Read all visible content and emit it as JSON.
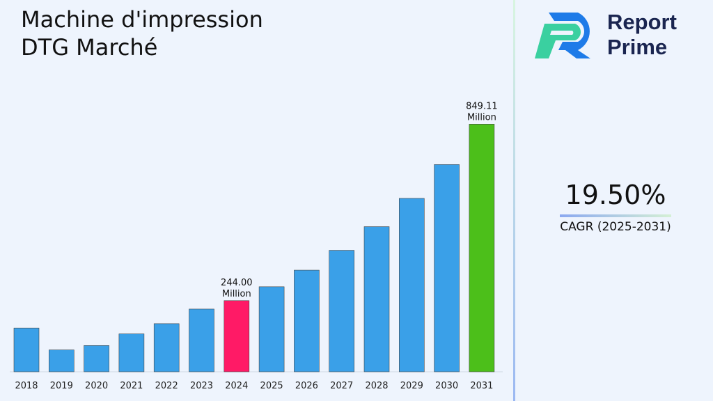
{
  "title_line1": "Machine d'impression",
  "title_line2": "DTG Marché",
  "logo": {
    "line1": "Report",
    "line2": "Prime"
  },
  "cagr": {
    "value": "19.50%",
    "label": "CAGR (2025-2031)"
  },
  "colors": {
    "default_bar": "#3aa0e8",
    "highlight_2024": "#ff1a66",
    "highlight_2031": "#4cbf1a"
  },
  "chart_data": {
    "type": "bar",
    "categories": [
      "2018",
      "2019",
      "2020",
      "2021",
      "2022",
      "2023",
      "2024",
      "2025",
      "2026",
      "2027",
      "2028",
      "2029",
      "2030",
      "2031"
    ],
    "values": [
      150,
      75,
      90,
      130,
      165,
      215,
      244.0,
      291.6,
      348.4,
      416.4,
      497.6,
      594.6,
      710.5,
      849.11
    ],
    "data_labels": [
      {
        "category": "2024",
        "line1": "244.00",
        "line2": "Million"
      },
      {
        "category": "2031",
        "line1": "849.11",
        "line2": "Million"
      }
    ],
    "ylim": [
      0,
      900
    ],
    "grid": false,
    "title": "",
    "xlabel": "",
    "ylabel": ""
  }
}
